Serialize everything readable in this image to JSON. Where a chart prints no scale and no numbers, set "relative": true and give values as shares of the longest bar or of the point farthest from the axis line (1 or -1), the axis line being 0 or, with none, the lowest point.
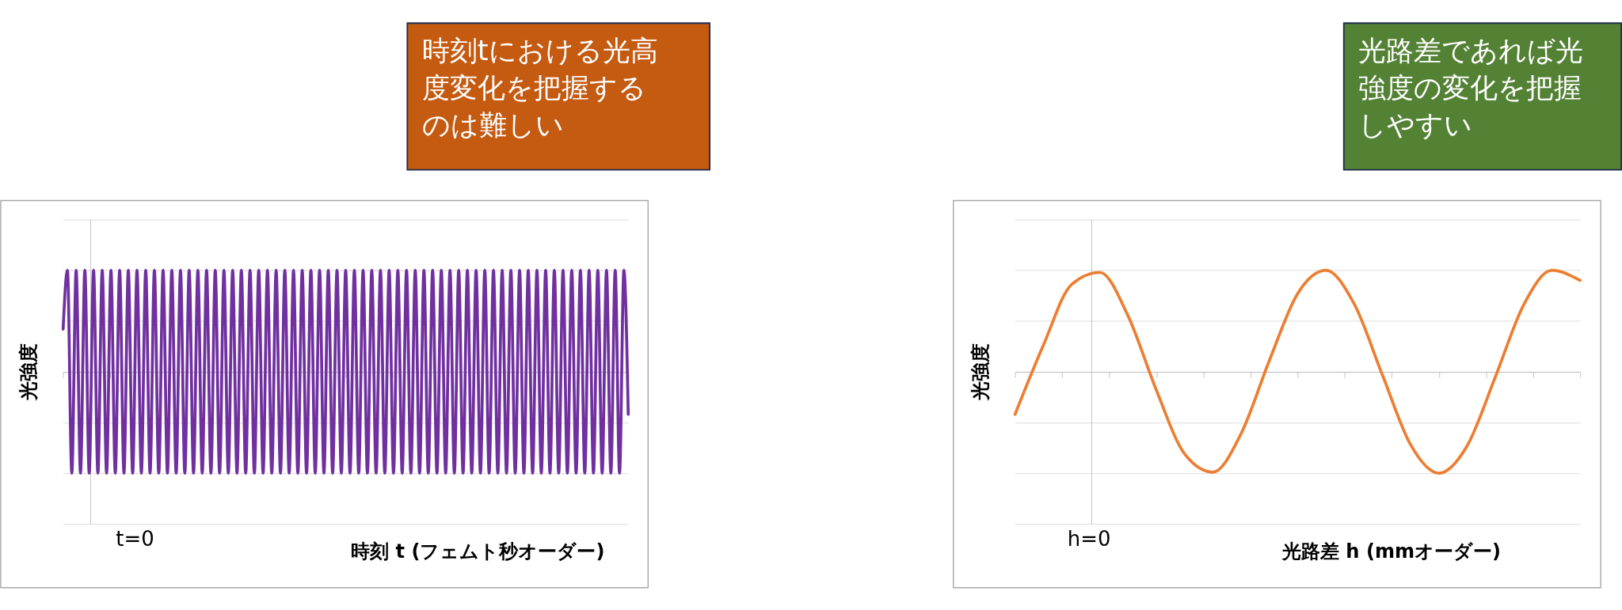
{
  "chart_data": [
    {
      "type": "line",
      "relative": true,
      "grid": "y",
      "tick_labels": false,
      "xlabel": "時刻 t (フェムト秒オーダー)",
      "ylabel": "光強度",
      "annotations": [
        "時刻tにおける光高度変化を把握するのは難しい",
        "t=0"
      ],
      "categories": [
        null,
        null,
        null,
        null,
        null,
        null,
        null,
        null,
        null,
        null,
        null,
        null,
        null,
        null,
        null,
        null,
        null,
        null,
        null,
        null,
        null,
        null,
        null,
        null,
        null,
        null,
        null,
        null,
        null,
        null,
        null,
        null,
        null,
        null,
        null,
        null,
        null,
        null,
        null,
        null,
        null,
        null,
        null,
        null,
        null,
        null,
        null,
        null,
        null,
        null,
        null,
        null,
        null,
        null,
        null,
        null,
        null,
        null,
        null,
        null,
        null,
        null,
        null,
        null,
        null,
        null,
        null,
        null,
        null,
        null,
        null,
        null,
        null,
        null,
        null,
        null,
        null,
        null,
        null,
        null,
        null,
        null,
        null,
        null,
        null,
        null,
        null,
        null,
        null,
        null,
        null,
        null,
        null,
        null,
        null,
        null,
        null,
        null,
        null,
        null,
        null,
        null,
        null,
        null,
        null,
        null,
        null,
        null,
        null,
        null,
        null,
        null,
        null,
        null,
        null,
        null,
        null,
        null,
        null,
        null,
        null,
        null,
        null,
        null,
        null,
        null,
        null,
        null,
        null,
        null,
        null
      ],
      "series": [
        {
          "color": "#7030a0",
          "values": [
            0.42,
            1,
            -1,
            1,
            -1,
            1,
            -1,
            1,
            -1,
            1,
            -1,
            1,
            -1,
            1,
            -1,
            1,
            -1,
            1,
            -1,
            1,
            -1,
            1,
            -1,
            1,
            -1,
            1,
            -1,
            1,
            -1,
            1,
            -1,
            1,
            -1,
            1,
            -1,
            1,
            -1,
            1,
            -1,
            1,
            -1,
            1,
            -1,
            1,
            -1,
            1,
            -1,
            1,
            -1,
            1,
            -1,
            1,
            -1,
            1,
            -1,
            1,
            -1,
            1,
            -1,
            1,
            -1,
            1,
            -1,
            1,
            -1,
            1,
            -1,
            1,
            -1,
            1,
            -1,
            1,
            -1,
            1,
            -1,
            1,
            -1,
            1,
            -1,
            1,
            -1,
            1,
            -1,
            1,
            -1,
            1,
            -1,
            1,
            -1,
            1,
            -1,
            1,
            -1,
            1,
            -1,
            1,
            -1,
            1,
            -1,
            1,
            -1,
            1,
            -1,
            1,
            -1,
            1,
            -1,
            1,
            -1,
            1,
            -1,
            1,
            -1,
            1,
            -1,
            1,
            -1,
            1,
            -1,
            1,
            -1,
            1,
            -1,
            1,
            -1,
            1,
            -1,
            1,
            -1,
            1,
            -0.42
          ]
        }
      ]
    },
    {
      "type": "line",
      "relative": true,
      "grid": "y",
      "tick_labels": false,
      "xlabel": "光路差 h (mmオーダー)",
      "ylabel": "光強度",
      "annotations": [
        "光路差であれば光強度の変化を把握しやすい",
        "h=0"
      ],
      "categories": [
        null,
        null,
        null,
        null,
        null,
        null,
        null,
        null,
        null,
        null,
        null,
        null,
        null,
        null,
        null,
        null,
        null,
        null,
        null,
        null,
        null
      ],
      "series": [
        {
          "color": "#ed7d31",
          "values": [
            -0.42,
            0.26,
            0.86,
            0.98,
            0.55,
            -0.18,
            -0.81,
            -0.99,
            -0.61,
            0.11,
            0.77,
            1,
            0.67,
            -0.03,
            -0.72,
            -1,
            -0.73,
            -0.05,
            0.66,
            1,
            0.9
          ]
        }
      ]
    }
  ]
}
